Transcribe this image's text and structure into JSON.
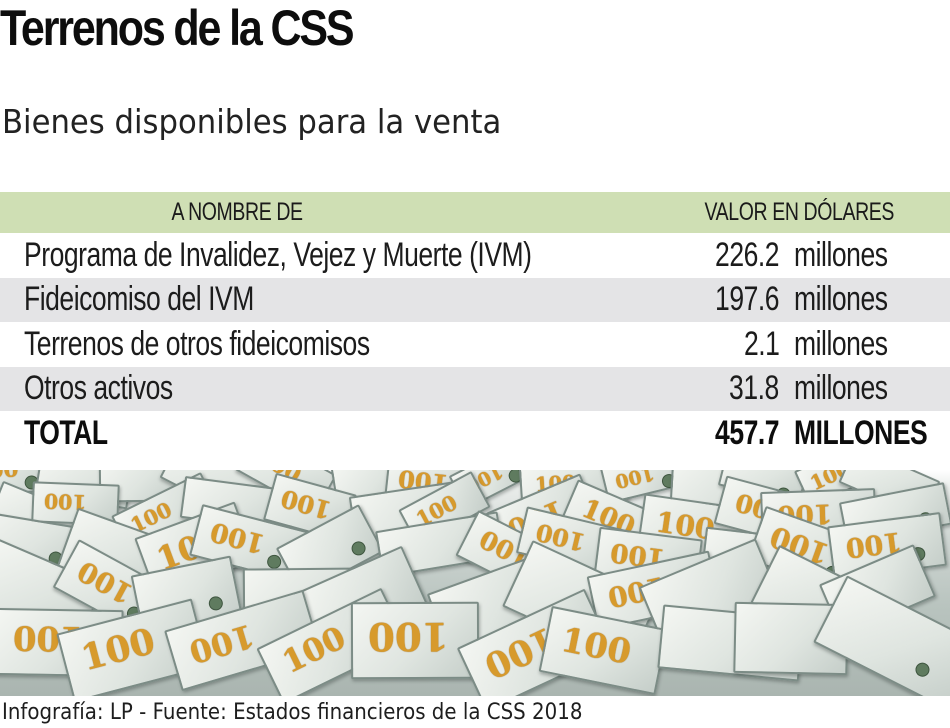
{
  "header": {
    "title": "Terrenos de la CSS",
    "subtitle": "Bienes disponibles para la venta"
  },
  "table": {
    "columns": [
      "A NOMBRE DE",
      "VALOR EN DÓLARES"
    ],
    "rows": [
      {
        "name": "Programa de Invalidez, Vejez y Muerte (IVM)",
        "value": "226.2",
        "unit": "millones"
      },
      {
        "name": "Fideicomiso del IVM",
        "value": "197.6",
        "unit": "millones"
      },
      {
        "name": "Terrenos de otros fideicomisos",
        "value": "2.1",
        "unit": "millones"
      },
      {
        "name": "Otros activos",
        "value": "31.8",
        "unit": "millones"
      }
    ],
    "total": {
      "name": "TOTAL",
      "value": "457.7",
      "unit": "MILLONES"
    }
  },
  "image": {
    "description": "Pile of 100 dollar bills",
    "icon": "money-pile-image"
  },
  "footer": {
    "credit": "Infografía: LP - Fuente: Estados financieros de la CSS 2018"
  },
  "colors": {
    "header_band": "#cfdfb4",
    "alt_row": "#e4e4e6",
    "text": "#111111",
    "bill_number": "#d79a2c"
  },
  "chart_data": {
    "type": "table",
    "title": "Terrenos de la CSS",
    "subtitle": "Bienes disponibles para la venta",
    "columns": [
      "A NOMBRE DE",
      "VALOR EN DÓLARES"
    ],
    "categories": [
      "Programa de Invalidez, Vejez y Muerte (IVM)",
      "Fideicomiso del IVM",
      "Terrenos de otros fideicomisos",
      "Otros activos"
    ],
    "values": [
      226.2,
      197.6,
      2.1,
      31.8
    ],
    "unit": "millones de dólares",
    "total": 457.7,
    "source": "Infografía: LP - Fuente: Estados financieros de la CSS 2018"
  }
}
